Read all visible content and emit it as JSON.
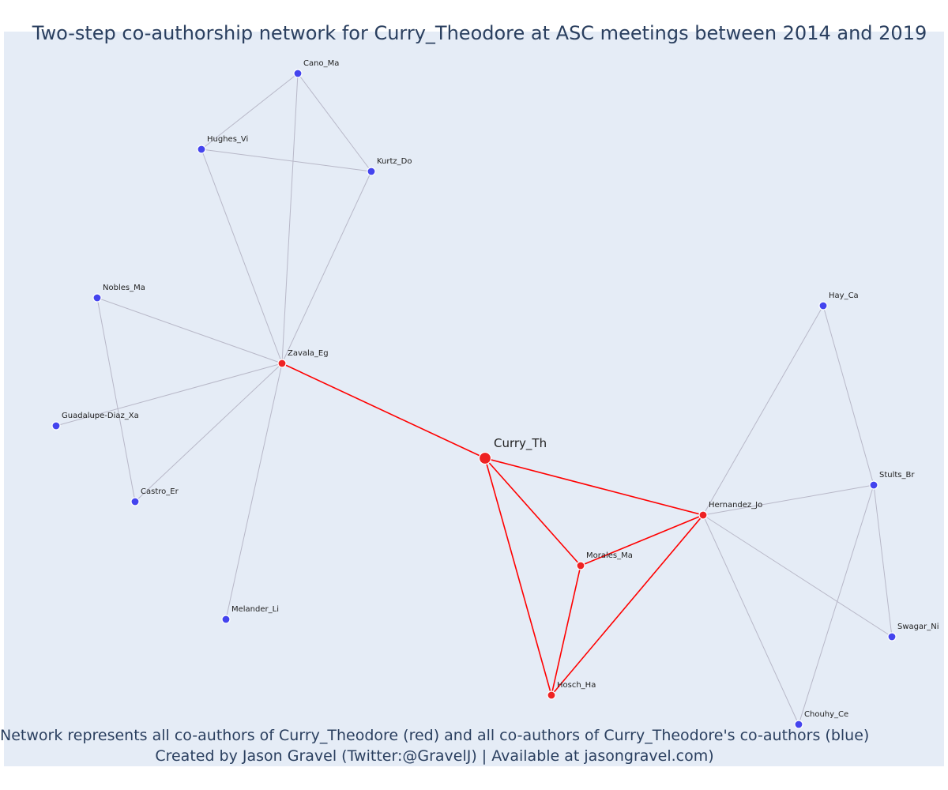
{
  "title": "Two-step co-authorship network for Curry_Theodore at ASC meetings between 2014 and 2019",
  "caption": {
    "line1": "Network represents all co-authors of Curry_Theodore (red) and all co-authors of Curry_Theodore's co-authors (blue)",
    "line2": "Created by Jason Gravel (Twitter:@GravelJ) | Available at jasongravel.com)"
  },
  "colors": {
    "background": "#e5ecf6",
    "ego_tie": "#ff0000",
    "other_tie": "#b8b8c8",
    "red_node": "#ee2222",
    "blue_node": "#4444ee",
    "node_border": "#ffffff"
  },
  "network": {
    "ego": "Curry_Th",
    "nodes": [
      {
        "id": "Curry_Th",
        "group": "ego"
      },
      {
        "id": "Zavala_Eg",
        "group": "red"
      },
      {
        "id": "Hernandez_Jo",
        "group": "red"
      },
      {
        "id": "Morales_Ma",
        "group": "red"
      },
      {
        "id": "Hosch_Ha",
        "group": "red"
      },
      {
        "id": "Cano_Ma",
        "group": "blue"
      },
      {
        "id": "Hughes_Vi",
        "group": "blue"
      },
      {
        "id": "Kurtz_Do",
        "group": "blue"
      },
      {
        "id": "Nobles_Ma",
        "group": "blue"
      },
      {
        "id": "Guadalupe-Diaz_Xa",
        "group": "blue"
      },
      {
        "id": "Castro_Er",
        "group": "blue"
      },
      {
        "id": "Melander_Li",
        "group": "blue"
      },
      {
        "id": "Hay_Ca",
        "group": "blue"
      },
      {
        "id": "Stults_Br",
        "group": "blue"
      },
      {
        "id": "Swagar_Ni",
        "group": "blue"
      },
      {
        "id": "Chouhy_Ce",
        "group": "blue"
      }
    ],
    "edges": [
      [
        "Curry_Th",
        "Zavala_Eg"
      ],
      [
        "Curry_Th",
        "Hernandez_Jo"
      ],
      [
        "Curry_Th",
        "Morales_Ma"
      ],
      [
        "Curry_Th",
        "Hosch_Ha"
      ],
      [
        "Morales_Ma",
        "Hernandez_Jo"
      ],
      [
        "Morales_Ma",
        "Hosch_Ha"
      ],
      [
        "Hosch_Ha",
        "Hernandez_Jo"
      ],
      [
        "Cano_Ma",
        "Hughes_Vi"
      ],
      [
        "Cano_Ma",
        "Kurtz_Do"
      ],
      [
        "Cano_Ma",
        "Zavala_Eg"
      ],
      [
        "Hughes_Vi",
        "Kurtz_Do"
      ],
      [
        "Hughes_Vi",
        "Zavala_Eg"
      ],
      [
        "Kurtz_Do",
        "Zavala_Eg"
      ],
      [
        "Nobles_Ma",
        "Zavala_Eg"
      ],
      [
        "Nobles_Ma",
        "Castro_Er"
      ],
      [
        "Guadalupe-Diaz_Xa",
        "Zavala_Eg"
      ],
      [
        "Castro_Er",
        "Zavala_Eg"
      ],
      [
        "Melander_Li",
        "Zavala_Eg"
      ],
      [
        "Hay_Ca",
        "Hernandez_Jo"
      ],
      [
        "Hay_Ca",
        "Stults_Br"
      ],
      [
        "Stults_Br",
        "Hernandez_Jo"
      ],
      [
        "Stults_Br",
        "Swagar_Ni"
      ],
      [
        "Stults_Br",
        "Chouhy_Ce"
      ],
      [
        "Swagar_Ni",
        "Hernandez_Jo"
      ],
      [
        "Chouhy_Ce",
        "Hernandez_Jo"
      ]
    ]
  }
}
